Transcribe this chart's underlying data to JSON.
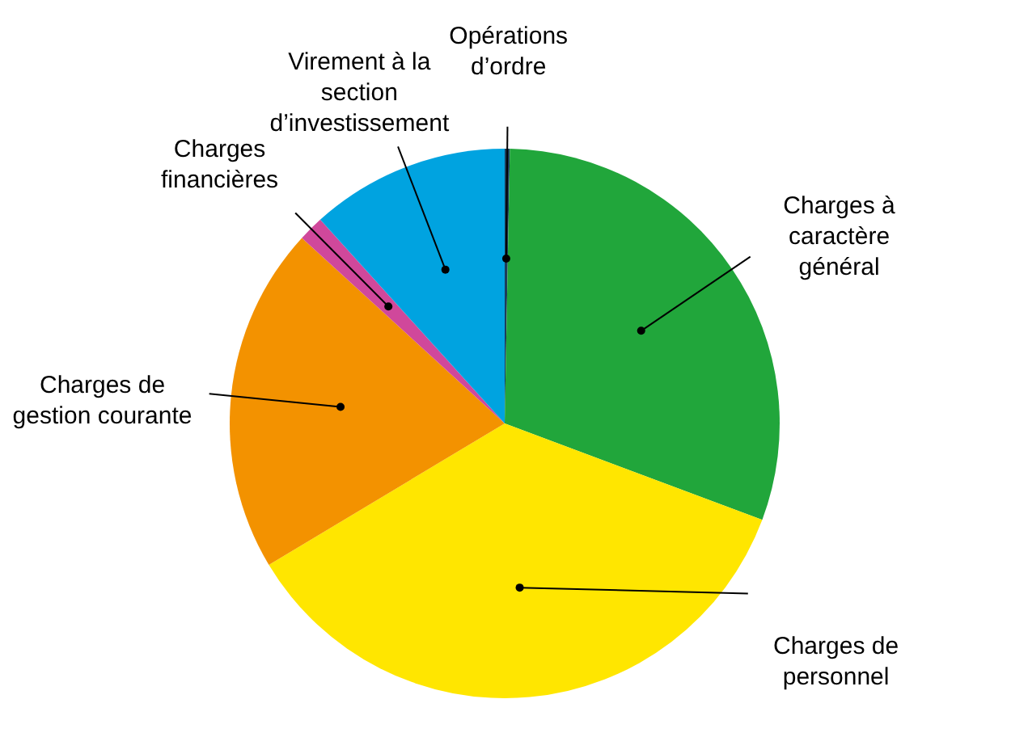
{
  "chart_data": {
    "type": "pie",
    "categories": [
      "Opérations d’ordre",
      "Charges à caractère général",
      "Charges de personnel",
      "Charges de gestion courante",
      "Charges financières",
      "Virement à la section d’investissement"
    ],
    "values": [
      0.3,
      30.4,
      35.7,
      20.4,
      1.5,
      11.7
    ],
    "colors": [
      "#1d3c5a",
      "#21a63b",
      "#ffe600",
      "#f39200",
      "#d0489b",
      "#00a3e0"
    ]
  }
}
